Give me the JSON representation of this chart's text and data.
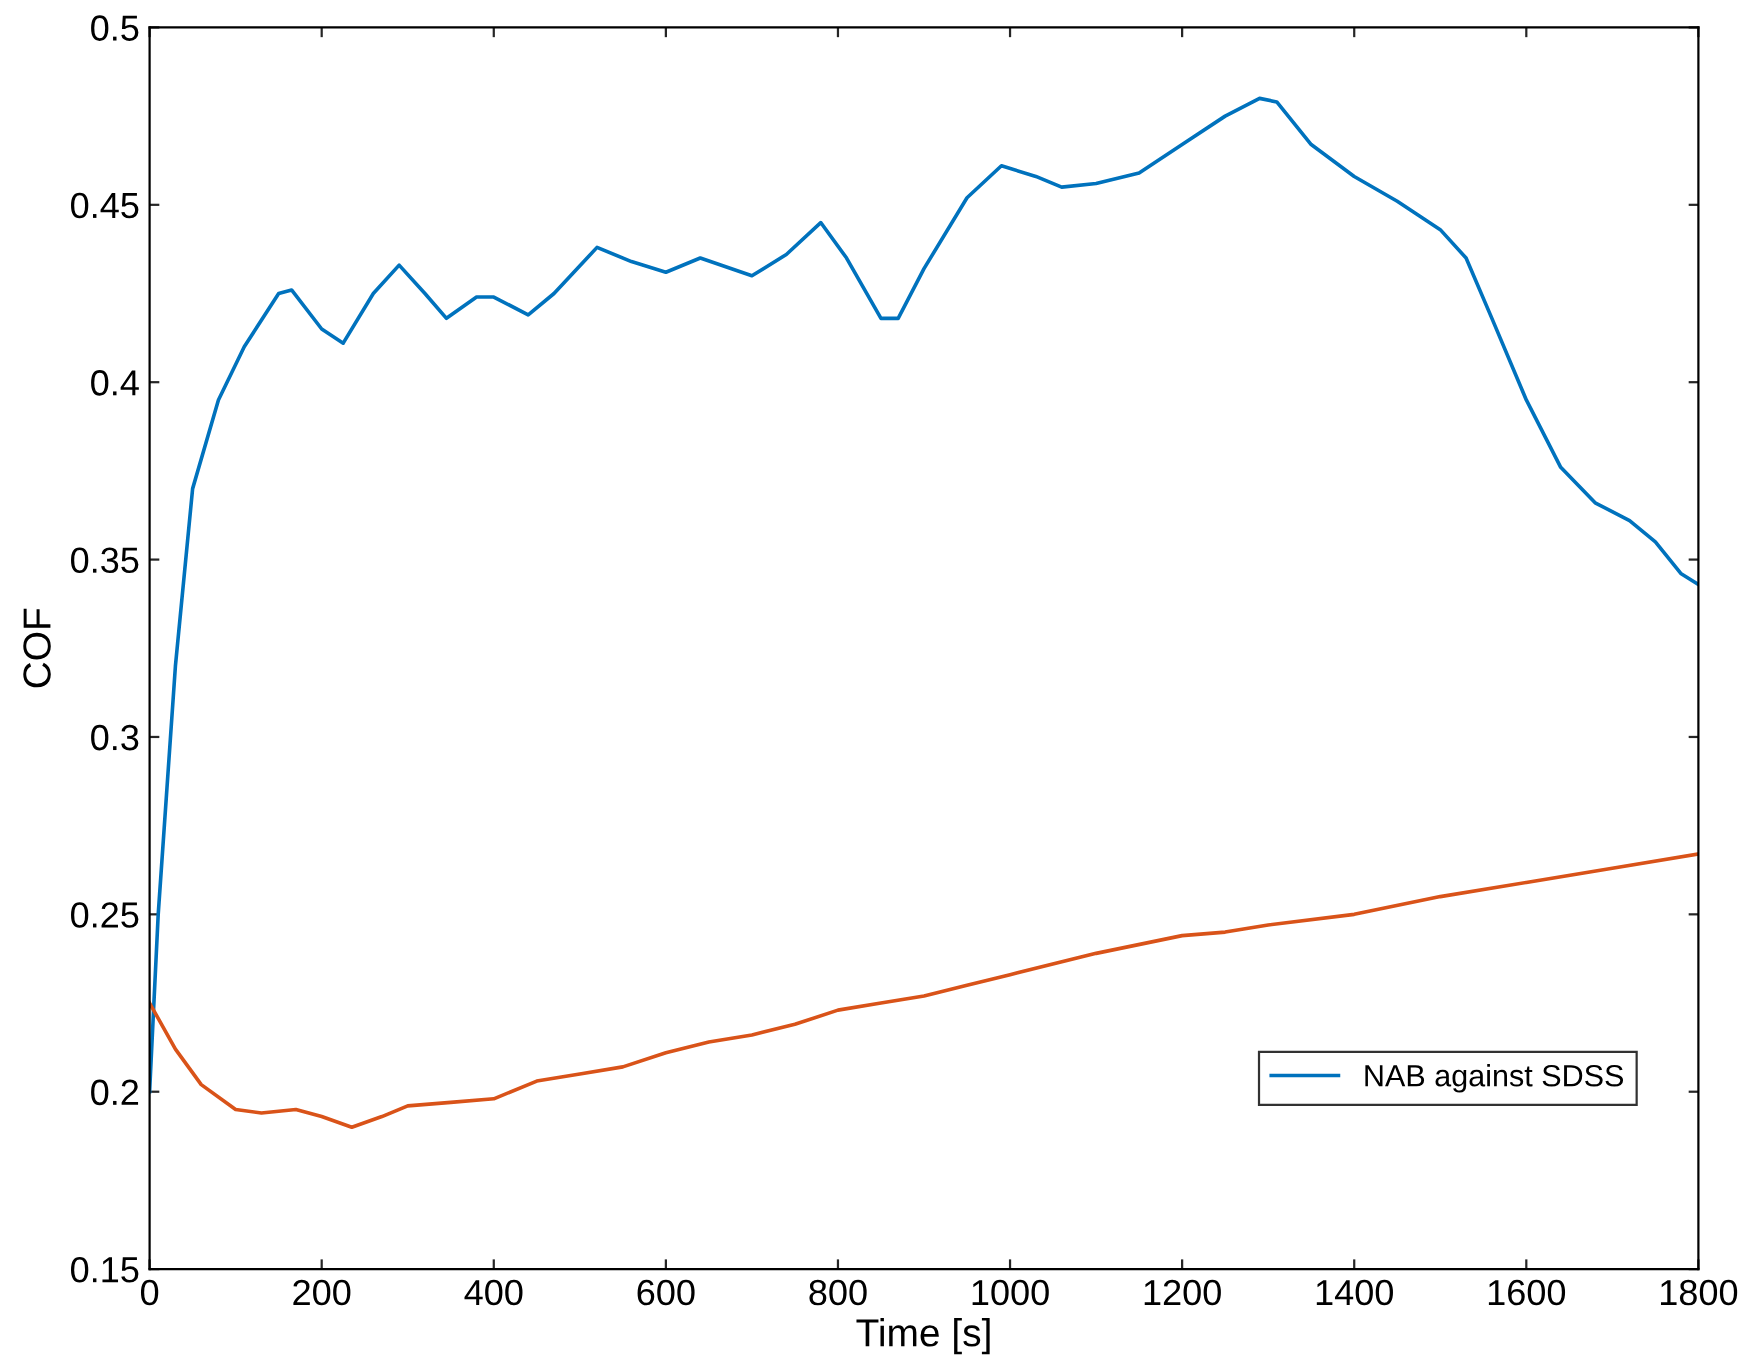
{
  "chart_data": {
    "type": "line",
    "xlabel": "Time [s]",
    "ylabel": "COF",
    "xlim": [
      0,
      1800
    ],
    "xticks": [
      0,
      200,
      400,
      600,
      800,
      1000,
      1200,
      1400,
      1600,
      1800
    ],
    "ylim": [
      0.15,
      0.5
    ],
    "yticks": [
      0.15,
      0.2,
      0.25,
      0.3,
      0.35,
      0.4,
      0.45,
      0.5
    ],
    "grid": false,
    "legend": "bottom right",
    "marker": "none",
    "line_style": "solid",
    "series": [
      {
        "name": "NAB against SDSS",
        "color": "#0072bd",
        "x": [
          0,
          10,
          30,
          50,
          80,
          110,
          150,
          165,
          200,
          225,
          260,
          290,
          320,
          345,
          380,
          400,
          440,
          470,
          520,
          560,
          600,
          640,
          700,
          740,
          780,
          810,
          850,
          870,
          900,
          950,
          990,
          1030,
          1060,
          1100,
          1150,
          1200,
          1250,
          1290,
          1310,
          1350,
          1400,
          1450,
          1500,
          1530,
          1560,
          1600,
          1640,
          1680,
          1720,
          1750,
          1780,
          1800
        ],
        "values": [
          0.2,
          0.25,
          0.32,
          0.37,
          0.395,
          0.41,
          0.425,
          0.426,
          0.415,
          0.411,
          0.425,
          0.433,
          0.425,
          0.418,
          0.424,
          0.424,
          0.419,
          0.425,
          0.438,
          0.434,
          0.431,
          0.435,
          0.43,
          0.436,
          0.445,
          0.435,
          0.418,
          0.418,
          0.432,
          0.452,
          0.461,
          0.458,
          0.455,
          0.456,
          0.459,
          0.467,
          0.475,
          0.48,
          0.479,
          0.467,
          0.458,
          0.451,
          0.443,
          0.435,
          0.418,
          0.395,
          0.376,
          0.366,
          0.361,
          0.355,
          0.346,
          0.343
        ]
      },
      {
        "color": "#d95319",
        "x": [
          0,
          30,
          60,
          100,
          130,
          170,
          200,
          235,
          270,
          300,
          350,
          400,
          450,
          500,
          550,
          600,
          650,
          700,
          750,
          800,
          850,
          900,
          950,
          1000,
          1100,
          1200,
          1250,
          1300,
          1400,
          1500,
          1600,
          1700,
          1800
        ],
        "values": [
          0.225,
          0.212,
          0.202,
          0.195,
          0.194,
          0.195,
          0.193,
          0.19,
          0.193,
          0.196,
          0.197,
          0.198,
          0.203,
          0.205,
          0.207,
          0.211,
          0.214,
          0.216,
          0.219,
          0.223,
          0.225,
          0.227,
          0.23,
          0.233,
          0.239,
          0.244,
          0.245,
          0.247,
          0.25,
          0.255,
          0.259,
          0.263,
          0.267
        ]
      }
    ]
  }
}
